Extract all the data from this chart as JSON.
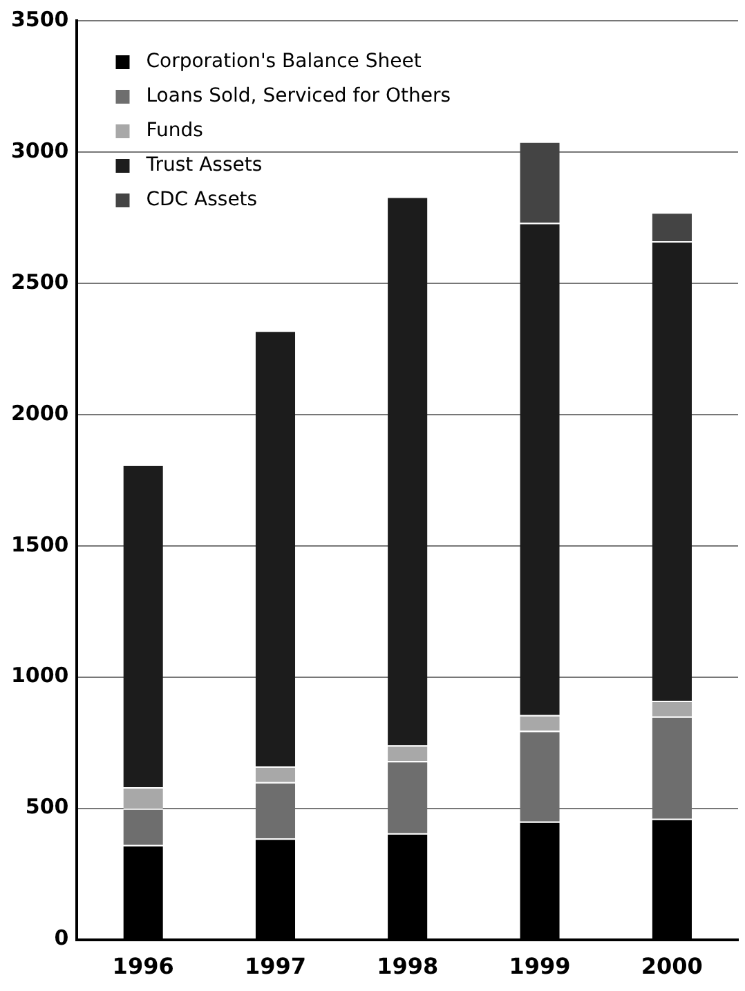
{
  "chart_data": {
    "type": "bar",
    "stacked": true,
    "categories": [
      "1996",
      "1997",
      "1998",
      "1999",
      "2000"
    ],
    "series": [
      {
        "name": "Corporation's Balance Sheet",
        "color": "#000000",
        "values": [
          360,
          385,
          405,
          450,
          460
        ]
      },
      {
        "name": "Loans Sold, Serviced for Others",
        "color": "#6e6e6e",
        "values": [
          140,
          215,
          275,
          345,
          390
        ]
      },
      {
        "name": "Funds",
        "color": "#a8a8a8",
        "values": [
          80,
          60,
          60,
          60,
          60
        ]
      },
      {
        "name": "Trust Assets",
        "color": "#1c1c1c",
        "values": [
          1230,
          1660,
          2090,
          1875,
          1750
        ]
      },
      {
        "name": "CDC Assets",
        "color": "#444444",
        "values": [
          0,
          0,
          0,
          310,
          110
        ]
      }
    ],
    "ylim": [
      0,
      3500
    ],
    "yticks": [
      0,
      500,
      1000,
      1500,
      2000,
      2500,
      3000,
      3500
    ],
    "grid": "y",
    "legend": "top left"
  }
}
